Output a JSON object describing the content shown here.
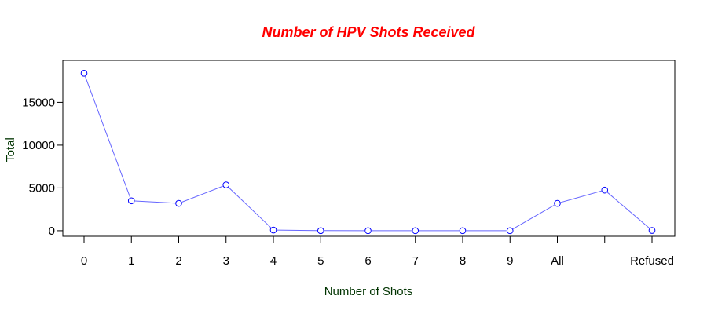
{
  "chart_data": {
    "type": "line",
    "title": "Number of HPV Shots Received",
    "xlabel": "Number of Shots",
    "ylabel": "Total",
    "categories": [
      "0",
      "1",
      "2",
      "3",
      "4",
      "5",
      "6",
      "7",
      "8",
      "9",
      "All",
      "",
      "Refused"
    ],
    "values": [
      18400,
      3500,
      3200,
      5350,
      80,
      10,
      5,
      5,
      5,
      5,
      3200,
      4750,
      30
    ],
    "ylim": [
      -650,
      19900
    ],
    "yticks": [
      0,
      5000,
      10000,
      15000
    ],
    "ytick_labels": [
      "0",
      "5000",
      "10000",
      "15000"
    ],
    "grid": false,
    "markers": "open-circle"
  },
  "colors": {
    "title": "#ff0000",
    "axis_label": "#003300",
    "line": "#6666ff",
    "marker": "#0000ff",
    "frame": "#000000"
  }
}
